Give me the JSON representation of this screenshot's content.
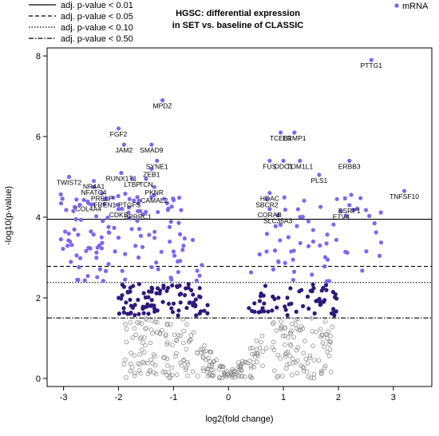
{
  "chart_data": {
    "type": "scatter",
    "title": "HGSC: differential expression\nin SET vs. baseline of CLASSIC",
    "xlabel": "log2(fold change)",
    "ylabel": "-log10(p-value)",
    "xlim": [
      -3.3,
      3.7
    ],
    "ylim": [
      -0.2,
      8.2
    ],
    "xticks": [
      -3,
      -2,
      -1,
      0,
      1,
      2,
      3
    ],
    "yticks": [
      0,
      2,
      4,
      6,
      8
    ],
    "grid": false,
    "legend_lines": {
      "position": "top-left",
      "entries": [
        {
          "label": "adj. p-value < 0.01",
          "y": 3.95,
          "dash": "solid"
        },
        {
          "label": "adj. p-value < 0.05",
          "y": 2.78,
          "dash": "dashed"
        },
        {
          "label": "adj. p-value < 0.10",
          "y": 2.38,
          "dash": "dotted"
        },
        {
          "label": "adj. p-value < 0.50",
          "y": 1.5,
          "dash": "dashdot"
        }
      ]
    },
    "legend_points": {
      "position": "top-right",
      "label": "mRNA",
      "color": "#7b68ee"
    },
    "colors": {
      "strong": "#7b68ee",
      "moderate": "#2e1a7a",
      "ns": "#8c8c8c"
    },
    "labeled_genes": [
      {
        "name": "PTTG1",
        "x": 2.6,
        "y": 7.9
      },
      {
        "name": "MPDZ",
        "x": -1.2,
        "y": 6.9
      },
      {
        "name": "FGF2",
        "x": -2.0,
        "y": 6.2
      },
      {
        "name": "JAM2",
        "x": -1.9,
        "y": 5.8
      },
      {
        "name": "SMAD9",
        "x": -1.4,
        "y": 5.8
      },
      {
        "name": "TCEB1",
        "x": 0.95,
        "y": 6.1
      },
      {
        "name": "ERMP1",
        "x": 1.2,
        "y": 6.1
      },
      {
        "name": "SYNE1",
        "x": -1.3,
        "y": 5.4
      },
      {
        "name": "ZEB1",
        "x": -1.4,
        "y": 5.2
      },
      {
        "name": "FUS",
        "x": 0.75,
        "y": 5.4
      },
      {
        "name": "ODC1",
        "x": 1.0,
        "y": 5.4
      },
      {
        "name": "TOM1L1",
        "x": 1.3,
        "y": 5.4
      },
      {
        "name": "ERBB3",
        "x": 2.2,
        "y": 5.4
      },
      {
        "name": "RUNX1T1",
        "x": -1.95,
        "y": 5.1
      },
      {
        "name": "TWIST2",
        "x": -2.9,
        "y": 5.0
      },
      {
        "name": "NR4A1",
        "x": -2.45,
        "y": 4.9
      },
      {
        "name": "NFATC4",
        "x": -2.45,
        "y": 4.75
      },
      {
        "name": "LTBP",
        "x": -1.75,
        "y": 4.95
      },
      {
        "name": "TCN",
        "x": -1.5,
        "y": 4.95
      },
      {
        "name": "PRELP",
        "x": -2.3,
        "y": 4.6
      },
      {
        "name": "PKNR",
        "x": -1.35,
        "y": 4.75
      },
      {
        "name": "PLS1",
        "x": 1.65,
        "y": 5.05
      },
      {
        "name": "HDAC",
        "x": 0.75,
        "y": 4.6
      },
      {
        "name": "SBCR2",
        "x": 0.7,
        "y": 4.45
      },
      {
        "name": "CAMAL2",
        "x": -1.35,
        "y": 4.55
      },
      {
        "name": "FREN1",
        "x": -2.25,
        "y": 4.45
      },
      {
        "name": "PTGFS",
        "x": -1.8,
        "y": 4.45
      },
      {
        "name": "COL4A4",
        "x": -2.55,
        "y": 4.35
      },
      {
        "name": "CDKS",
        "x": -2.0,
        "y": 4.2
      },
      {
        "name": "SPRRC1",
        "x": -1.65,
        "y": 4.15
      },
      {
        "name": "CORAB",
        "x": 0.75,
        "y": 4.2
      },
      {
        "name": "SLC35A3",
        "x": 0.9,
        "y": 4.05
      },
      {
        "name": "ESRP1",
        "x": 2.2,
        "y": 4.3
      },
      {
        "name": "ETV4",
        "x": 2.05,
        "y": 4.15
      },
      {
        "name": "TNFSF10",
        "x": 3.2,
        "y": 4.65
      }
    ]
  }
}
